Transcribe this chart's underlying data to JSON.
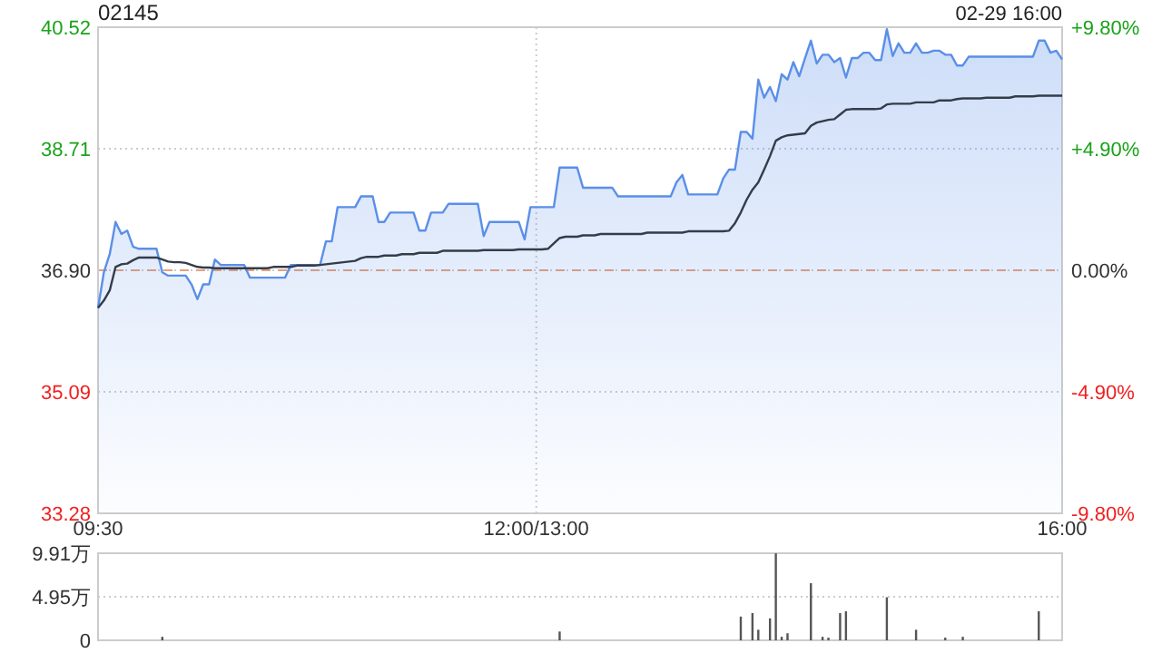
{
  "chart_data": [
    {
      "type": "line",
      "title": "02145",
      "annotations": [
        "02-29 16:00"
      ],
      "categories": [
        "09:30",
        null,
        null,
        null,
        null,
        null,
        null,
        null,
        null,
        null,
        null,
        null,
        null,
        null,
        null,
        null,
        null,
        null,
        null,
        null,
        null,
        null,
        null,
        null,
        null,
        null,
        null,
        null,
        null,
        null,
        null,
        null,
        null,
        null,
        null,
        null,
        null,
        null,
        null,
        null,
        null,
        null,
        null,
        null,
        null,
        null,
        null,
        null,
        null,
        null,
        null,
        null,
        null,
        null,
        null,
        null,
        null,
        null,
        null,
        null,
        null,
        null,
        null,
        null,
        null,
        null,
        null,
        null,
        null,
        null,
        null,
        null,
        null,
        null,
        null,
        "12:00/13:00",
        null,
        null,
        null,
        null,
        null,
        null,
        null,
        null,
        null,
        null,
        null,
        null,
        null,
        null,
        null,
        null,
        null,
        null,
        null,
        null,
        null,
        null,
        null,
        null,
        null,
        null,
        null,
        null,
        null,
        null,
        null,
        null,
        null,
        null,
        null,
        null,
        null,
        null,
        null,
        null,
        null,
        null,
        null,
        null,
        null,
        null,
        null,
        null,
        null,
        null,
        null,
        null,
        null,
        null,
        null,
        null,
        null,
        null,
        null,
        null,
        null,
        null,
        null,
        null,
        null,
        null,
        null,
        null,
        null,
        null,
        null,
        null,
        null,
        null,
        null,
        null,
        null,
        null,
        null,
        null,
        null,
        null,
        null,
        null,
        null,
        null,
        null,
        null,
        null,
        "16:00"
      ],
      "ylim": [
        33.28,
        40.52
      ],
      "yticks": [
        33.28,
        35.09,
        {
          "value": 36.9,
          "label": "36.90"
        },
        38.71,
        40.52
      ],
      "y2lim": [
        -9.8,
        9.8
      ],
      "y2ticks": [
        {
          "value": -9.8,
          "label": "-9.80%"
        },
        {
          "value": -4.9,
          "label": "-4.90%"
        },
        {
          "value": 0,
          "label": "0.00%"
        },
        {
          "value": 4.9,
          "label": "+4.90%"
        },
        {
          "value": 9.8,
          "label": "+9.80%"
        }
      ],
      "grid": true,
      "ref_lines": [
        {
          "axis": "y",
          "value": 36.9,
          "color": "#e8a07c",
          "line_style": "dashed"
        }
      ],
      "series": [
        {
          "type": "area",
          "color": "#5a8fe8",
          "values": [
            36.34,
            36.87,
            37.14,
            37.62,
            37.44,
            37.49,
            37.25,
            37.22,
            37.22,
            37.22,
            37.22,
            36.87,
            36.82,
            36.82,
            36.82,
            36.82,
            36.69,
            36.47,
            36.69,
            36.69,
            37.06,
            36.98,
            36.98,
            36.98,
            36.98,
            36.98,
            36.79,
            36.79,
            36.79,
            36.79,
            36.79,
            36.79,
            36.79,
            36.98,
            36.98,
            36.98,
            36.98,
            36.98,
            36.98,
            37.33,
            37.33,
            37.84,
            37.84,
            37.84,
            37.84,
            38.0,
            38.0,
            38.0,
            37.62,
            37.62,
            37.76,
            37.76,
            37.76,
            37.76,
            37.76,
            37.49,
            37.49,
            37.76,
            37.76,
            37.76,
            37.89,
            37.89,
            37.89,
            37.89,
            37.89,
            37.89,
            37.41,
            37.62,
            37.62,
            37.62,
            37.62,
            37.62,
            37.62,
            37.36,
            37.84,
            37.84,
            37.84,
            37.84,
            37.84,
            38.43,
            38.43,
            38.43,
            38.43,
            38.13,
            38.13,
            38.13,
            38.13,
            38.13,
            38.13,
            38.0,
            38.0,
            38.0,
            38.0,
            38.0,
            38.0,
            38.0,
            38.0,
            38.0,
            38.0,
            38.21,
            38.32,
            38.03,
            38.03,
            38.03,
            38.03,
            38.03,
            38.03,
            38.27,
            38.4,
            38.4,
            38.96,
            38.96,
            38.86,
            39.74,
            39.47,
            39.63,
            39.42,
            39.82,
            39.74,
            40.0,
            39.79,
            40.06,
            40.32,
            39.98,
            40.11,
            40.11,
            40.0,
            40.06,
            39.77,
            40.06,
            40.06,
            40.14,
            40.14,
            40.03,
            40.03,
            40.49,
            40.09,
            40.28,
            40.14,
            40.14,
            40.28,
            40.14,
            40.14,
            40.17,
            40.17,
            40.11,
            40.11,
            39.95,
            39.95,
            40.08,
            40.08,
            40.08,
            40.08,
            40.08,
            40.08,
            40.08,
            40.08,
            40.08,
            40.08,
            40.08,
            40.08,
            40.32,
            40.32,
            40.14,
            40.17,
            40.04
          ]
        },
        {
          "color": "#333c4a",
          "values": [
            36.34,
            36.45,
            36.6,
            36.95,
            36.99,
            37.0,
            37.05,
            37.09,
            37.09,
            37.09,
            37.09,
            37.06,
            37.03,
            37.02,
            37.02,
            37.01,
            36.98,
            36.95,
            36.94,
            36.94,
            36.93,
            36.93,
            36.93,
            36.93,
            36.93,
            36.93,
            36.93,
            36.93,
            36.93,
            36.93,
            36.95,
            36.95,
            36.95,
            36.95,
            36.97,
            36.97,
            36.97,
            36.97,
            36.98,
            36.99,
            37.0,
            37.01,
            37.02,
            37.03,
            37.04,
            37.08,
            37.1,
            37.1,
            37.1,
            37.12,
            37.12,
            37.12,
            37.14,
            37.14,
            37.14,
            37.16,
            37.16,
            37.16,
            37.16,
            37.19,
            37.19,
            37.19,
            37.19,
            37.19,
            37.19,
            37.19,
            37.2,
            37.2,
            37.2,
            37.2,
            37.2,
            37.2,
            37.21,
            37.21,
            37.21,
            37.21,
            37.21,
            37.22,
            37.3,
            37.38,
            37.4,
            37.4,
            37.4,
            37.42,
            37.42,
            37.42,
            37.44,
            37.44,
            37.44,
            37.44,
            37.44,
            37.44,
            37.44,
            37.44,
            37.46,
            37.46,
            37.46,
            37.46,
            37.46,
            37.46,
            37.46,
            37.48,
            37.48,
            37.48,
            37.48,
            37.48,
            37.48,
            37.48,
            37.49,
            37.6,
            37.76,
            37.95,
            38.1,
            38.21,
            38.4,
            38.6,
            38.83,
            38.88,
            38.91,
            38.92,
            38.93,
            38.94,
            39.05,
            39.1,
            39.12,
            39.14,
            39.15,
            39.22,
            39.29,
            39.3,
            39.3,
            39.3,
            39.3,
            39.3,
            39.31,
            39.37,
            39.38,
            39.38,
            39.38,
            39.38,
            39.4,
            39.4,
            39.4,
            39.4,
            39.43,
            39.43,
            39.43,
            39.45,
            39.46,
            39.46,
            39.46,
            39.46,
            39.47,
            39.47,
            39.47,
            39.47,
            39.47,
            39.49,
            39.49,
            39.49,
            39.49,
            39.5,
            39.5,
            39.5,
            39.5,
            39.5
          ]
        }
      ]
    },
    {
      "type": "bar",
      "ylim": [
        0,
        9.91
      ],
      "yticks": [
        0,
        {
          "value": 4.95,
          "label": "4.95万"
        },
        {
          "value": 9.91,
          "label": "9.91万"
        }
      ],
      "grid": "y",
      "tick_labels": "y",
      "color": "#555555",
      "categories": [
        null,
        null,
        null,
        null,
        null,
        null,
        null,
        null,
        null,
        null,
        null,
        null,
        null,
        null,
        null,
        null,
        null,
        null,
        null,
        null,
        null,
        null,
        null,
        null,
        null,
        null,
        null,
        null,
        null,
        null,
        null,
        null,
        null,
        null,
        null,
        null,
        null,
        null,
        null,
        null,
        null,
        null,
        null,
        null,
        null,
        null,
        null,
        null,
        null,
        null,
        null,
        null,
        null,
        null,
        null,
        null,
        null,
        null,
        null,
        null,
        null,
        null,
        null,
        null,
        null,
        null,
        null,
        null,
        null,
        null,
        null,
        null,
        null,
        null,
        null,
        null,
        null,
        null,
        null,
        null,
        null,
        null,
        null,
        null,
        null,
        null,
        null,
        null,
        null,
        null,
        null,
        null,
        null,
        null,
        null,
        null,
        null,
        null,
        null,
        null,
        null,
        null,
        null,
        null,
        null,
        null,
        null,
        null,
        null,
        null,
        null,
        null,
        null,
        null,
        null,
        null,
        null,
        null,
        null,
        null,
        null,
        null,
        null,
        null,
        null,
        null,
        null,
        null,
        null,
        null,
        null,
        null,
        null,
        null,
        null,
        null,
        null,
        null,
        null,
        null,
        null,
        null,
        null,
        null,
        null,
        null,
        null,
        null,
        null,
        null,
        null,
        null,
        null,
        null,
        null,
        null,
        null,
        null,
        null,
        null,
        null,
        null,
        null,
        null,
        null,
        null
      ],
      "values": [
        0,
        0,
        0,
        0,
        0,
        0,
        0,
        0,
        0,
        0,
        0,
        0.4,
        0,
        0,
        0,
        0,
        0,
        0,
        0,
        0,
        0,
        0,
        0,
        0,
        0,
        0,
        0,
        0,
        0,
        0,
        0,
        0,
        0,
        0,
        0,
        0,
        0,
        0,
        0,
        0,
        0,
        0,
        0,
        0,
        0,
        0,
        0,
        0,
        0,
        0,
        0,
        0,
        0,
        0,
        0,
        0,
        0,
        0,
        0,
        0,
        0,
        0,
        0,
        0,
        0,
        0,
        0,
        0,
        0,
        0,
        0,
        0,
        0,
        0,
        0,
        0,
        0,
        0,
        0,
        1.0,
        0,
        0,
        0,
        0,
        0,
        0,
        0,
        0,
        0,
        0,
        0,
        0,
        0,
        0,
        0,
        0,
        0,
        0,
        0,
        0,
        0,
        0,
        0,
        0,
        0,
        0,
        0,
        0,
        0,
        0,
        2.7,
        0,
        3.1,
        1.2,
        0,
        2.5,
        9.9,
        0.4,
        0.8,
        0,
        0,
        0,
        6.5,
        0,
        0.4,
        0.3,
        0,
        3.1,
        3.3,
        0,
        0,
        0,
        0,
        0,
        0,
        4.9,
        0,
        0,
        0,
        0,
        1.2,
        0,
        0,
        0,
        0,
        0.3,
        0,
        0,
        0.4,
        0,
        0,
        0,
        0,
        0,
        0,
        0,
        0,
        0,
        0,
        0,
        0,
        3.3,
        0,
        0,
        0,
        0
      ]
    }
  ]
}
